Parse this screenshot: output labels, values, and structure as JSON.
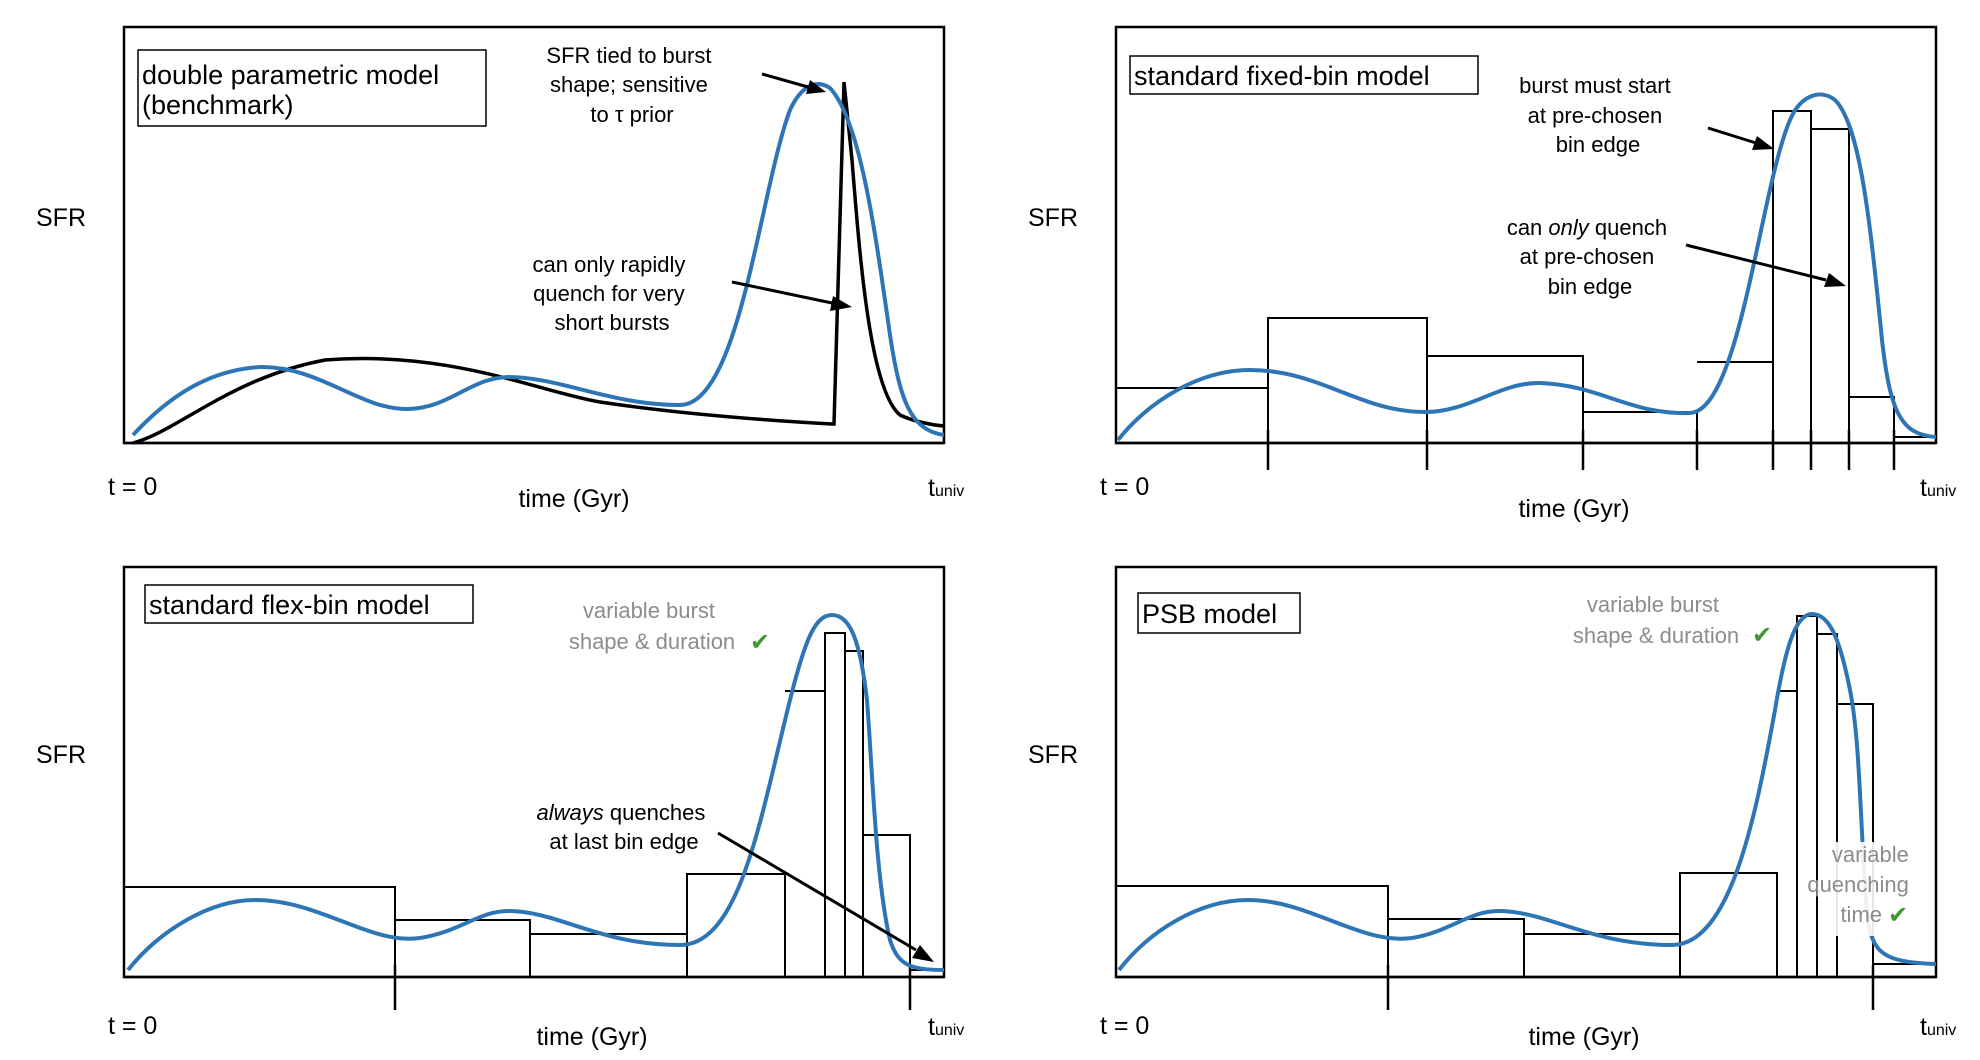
{
  "colors": {
    "model_curve": "#2e75b6",
    "benchmark_curve": "#000000",
    "frame": "#000000",
    "muted_text": "#8c8c8c",
    "check": "#3c9a2f"
  },
  "axis_common": {
    "ylabel": "SFR",
    "xlabel": "time (Gyr)",
    "x_start": "t = 0",
    "x_end_main": "t",
    "x_end_sub": "univ"
  },
  "panels": [
    {
      "id": "double-parametric",
      "title_lines": [
        "double parametric model",
        "(benchmark)"
      ],
      "annotations": [
        {
          "lines": [
            "SFR tied to burst",
            "shape; sensitive",
            "to τ prior"
          ],
          "style": "normal"
        },
        {
          "lines": [
            "can only rapidly",
            "quench for very",
            "short bursts"
          ],
          "style": "normal"
        }
      ]
    },
    {
      "id": "standard-fixed-bin",
      "title_lines": [
        "standard fixed-bin model"
      ],
      "annotations": [
        {
          "lines": [
            "burst must start",
            "at pre-chosen",
            "bin edge"
          ],
          "style": "normal"
        },
        {
          "lines": [
            "can only quench",
            "at pre-chosen",
            "bin edge"
          ],
          "style": "normal",
          "italic_word": "only"
        }
      ]
    },
    {
      "id": "standard-flex-bin",
      "title_lines": [
        "standard flex-bin model"
      ],
      "annotations": [
        {
          "lines": [
            "variable burst",
            "shape & duration"
          ],
          "style": "muted",
          "check": "✔"
        },
        {
          "lines": [
            "always quenches",
            "at last bin edge"
          ],
          "style": "normal",
          "italic_word": "always"
        }
      ]
    },
    {
      "id": "psb",
      "title_lines": [
        "PSB model"
      ],
      "annotations": [
        {
          "lines": [
            "variable burst",
            "shape & duration"
          ],
          "style": "muted",
          "check": "✔"
        },
        {
          "lines": [
            "variable",
            "quenching",
            "time"
          ],
          "style": "muted",
          "check": "✔"
        }
      ]
    }
  ]
}
